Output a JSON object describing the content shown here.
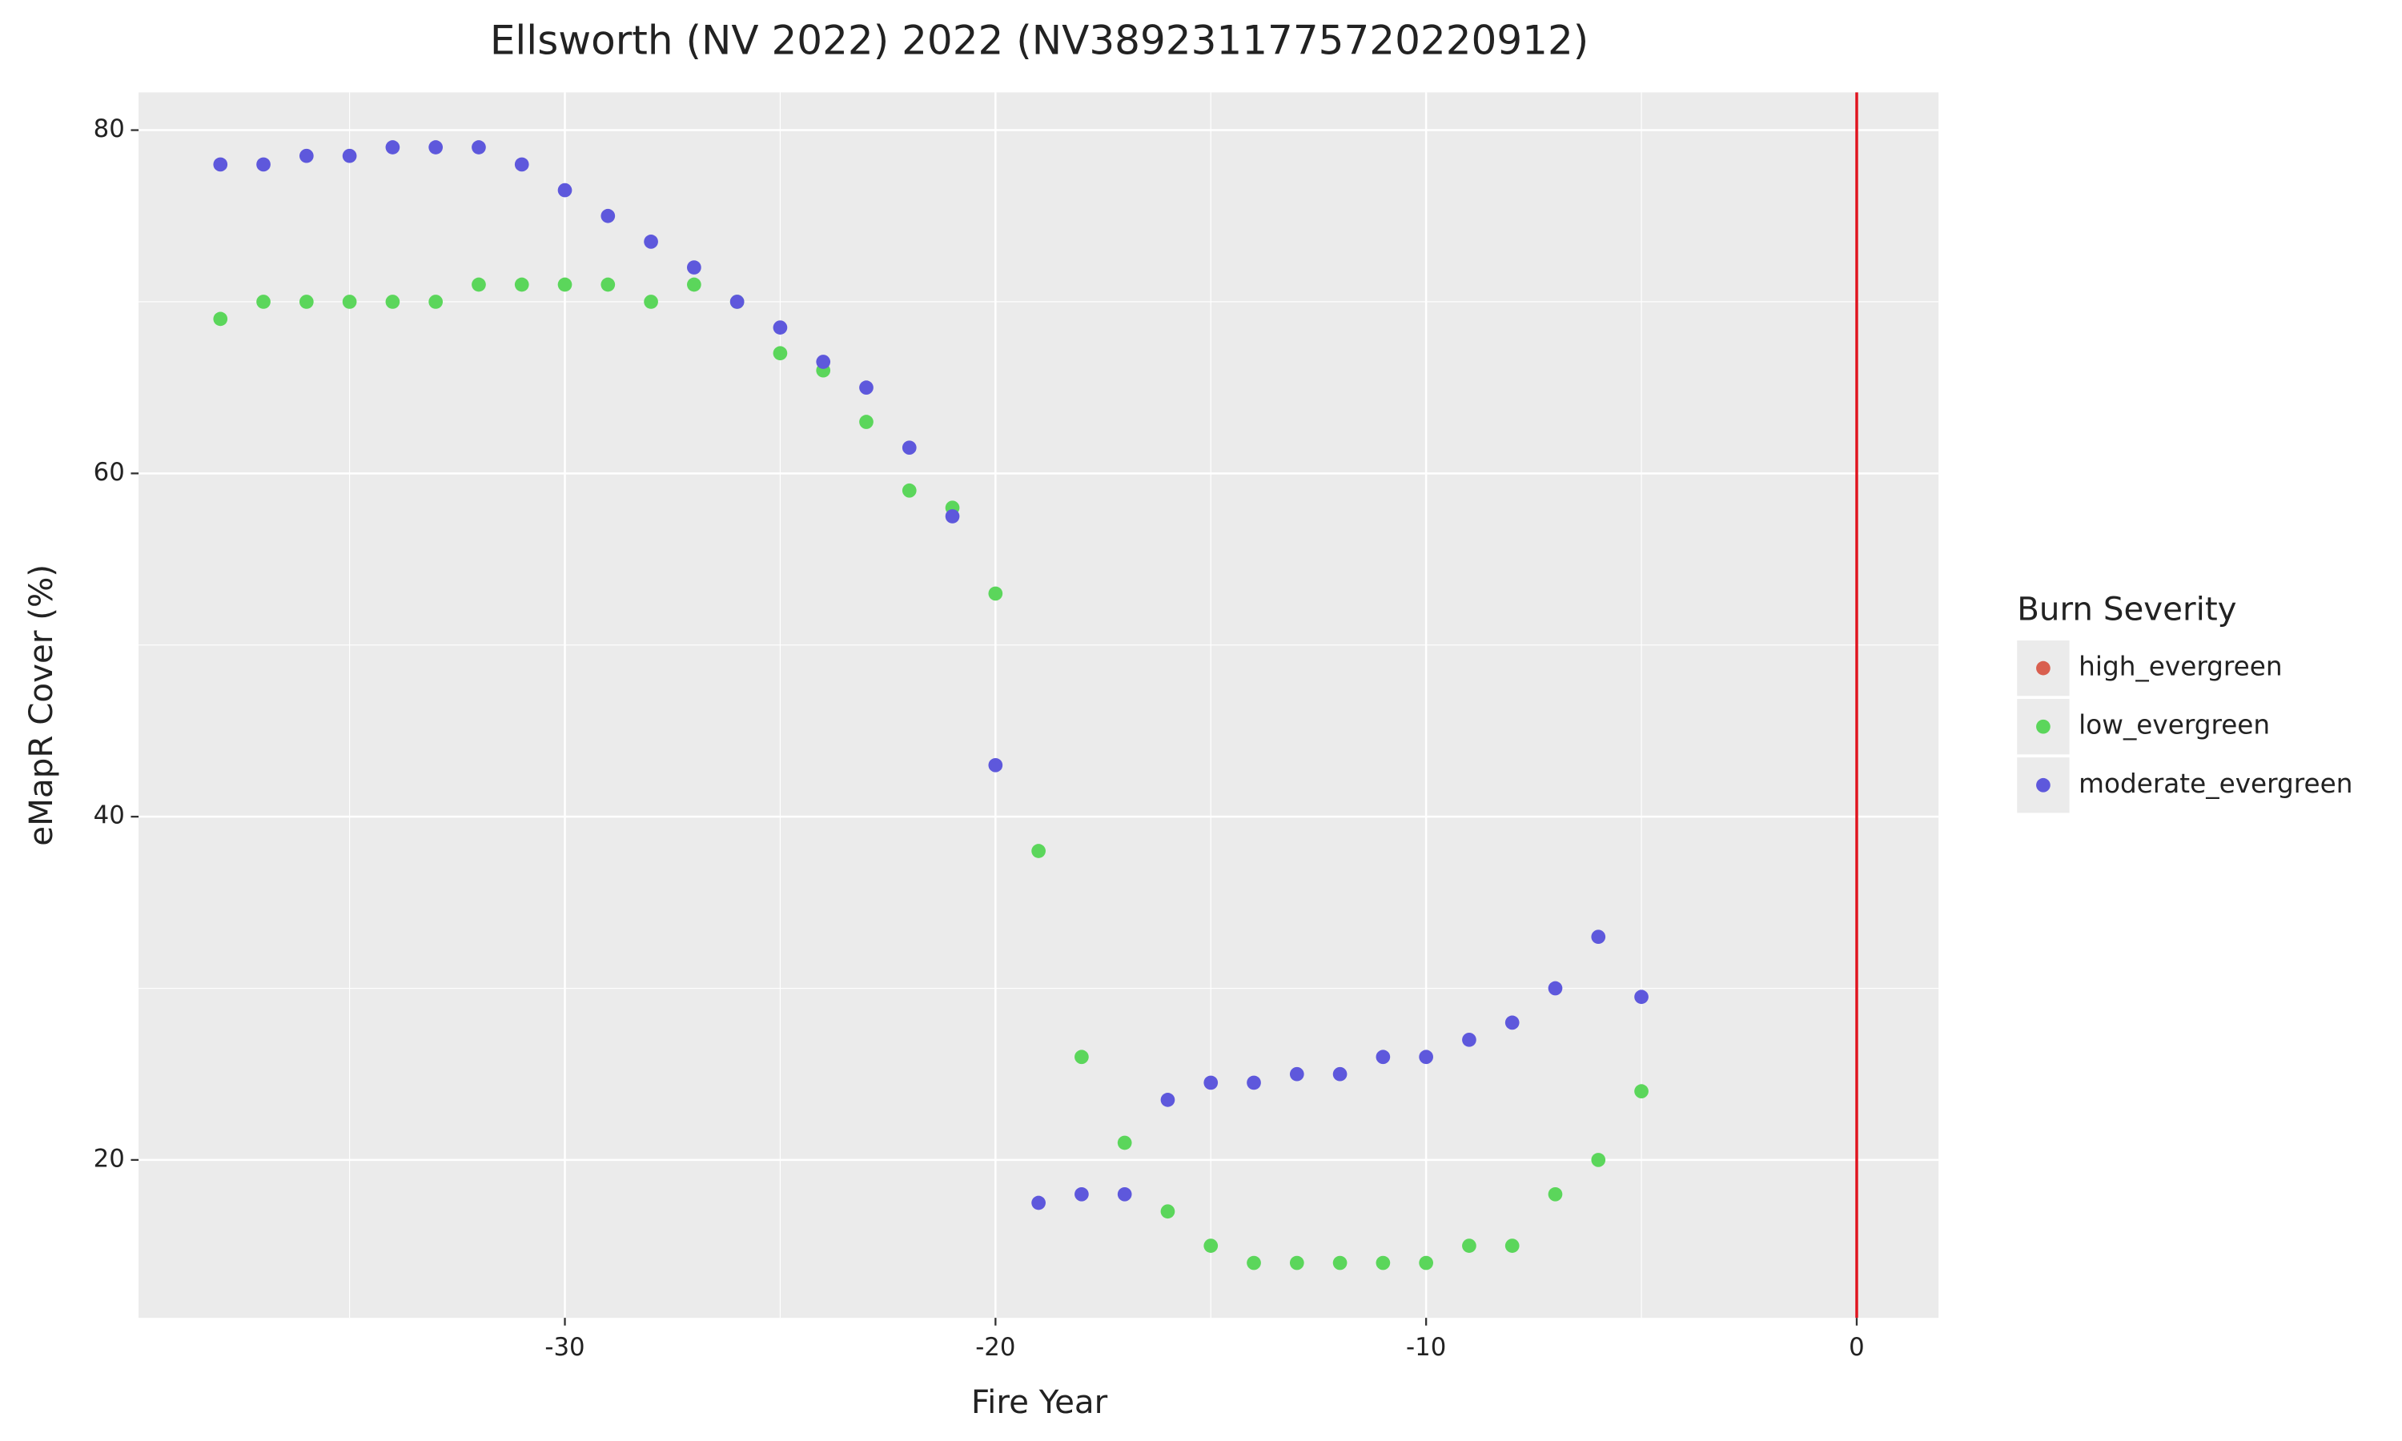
{
  "chart_data": {
    "type": "scatter",
    "title": "Ellsworth (NV 2022) 2022 (NV3892311775720220912)",
    "x_label": "Fire Year",
    "y_label": "eMapR Cover (%)",
    "legend_title": "Burn Severity",
    "legend_position": "right",
    "x": [
      -38,
      -37,
      -36,
      -35,
      -34,
      -33,
      -32,
      -31,
      -30,
      -29,
      -28,
      -27,
      -26,
      -25,
      -24,
      -23,
      -22,
      -21,
      -20,
      -19,
      -18,
      -17,
      -16,
      -15,
      -14,
      -13,
      -12,
      -11,
      -10,
      -9,
      -8,
      -7,
      -6,
      -5
    ],
    "series": [
      {
        "name": "high_evergreen",
        "color": "#d95f4f",
        "values": [
          null,
          null,
          null,
          null,
          null,
          null,
          null,
          null,
          null,
          null,
          null,
          null,
          null,
          null,
          null,
          null,
          null,
          null,
          null,
          null,
          null,
          null,
          null,
          null,
          null,
          null,
          null,
          null,
          null,
          null,
          null,
          null,
          null,
          null
        ]
      },
      {
        "name": "low_evergreen",
        "color": "#5bd65b",
        "values": [
          69,
          70,
          70,
          70,
          70,
          70,
          71,
          71,
          71,
          71,
          70,
          71,
          70,
          67,
          66,
          63,
          59,
          58,
          53,
          38,
          26,
          21,
          17,
          15,
          14,
          14,
          14,
          14,
          14,
          15,
          15,
          18,
          20,
          24
        ]
      },
      {
        "name": "moderate_evergreen",
        "color": "#5e58dc",
        "values": [
          78,
          78,
          78.5,
          78.5,
          79,
          79,
          79,
          78,
          76.5,
          75,
          73.5,
          72,
          70,
          68.5,
          66.5,
          65,
          61.5,
          57.5,
          43,
          17.5,
          18,
          18,
          23.5,
          24.5,
          24.5,
          25,
          25,
          26,
          26,
          27,
          28,
          30,
          33,
          29.5
        ]
      }
    ],
    "xlim": [
      -39.9,
      1.9
    ],
    "ylim": [
      10.8,
      82.2
    ],
    "xticks": [
      -30,
      -20,
      -10,
      0
    ],
    "yticks": [
      20,
      40,
      60,
      80
    ],
    "grid": true,
    "vline": 0,
    "vline_color": "#e0141e"
  }
}
